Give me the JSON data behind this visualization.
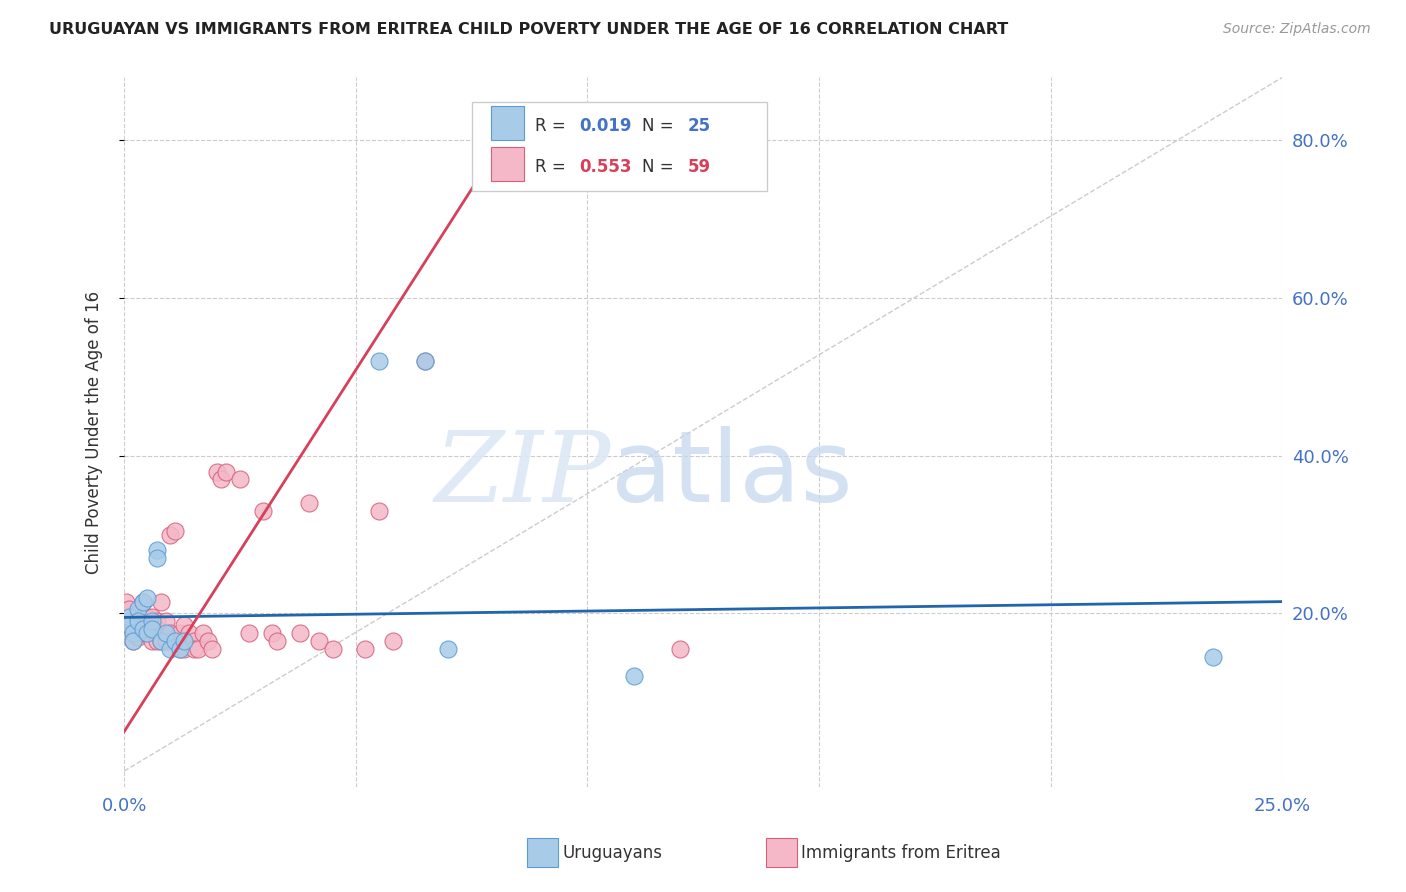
{
  "title": "URUGUAYAN VS IMMIGRANTS FROM ERITREA CHILD POVERTY UNDER THE AGE OF 16 CORRELATION CHART",
  "source": "Source: ZipAtlas.com",
  "ylabel": "Child Poverty Under the Age of 16",
  "xmin": 0.0,
  "xmax": 0.25,
  "ymin": -0.02,
  "ymax": 0.88,
  "yticks": [
    0.2,
    0.4,
    0.6,
    0.8
  ],
  "ytick_labels": [
    "20.0%",
    "40.0%",
    "60.0%",
    "80.0%"
  ],
  "xticks": [
    0.0,
    0.05,
    0.1,
    0.15,
    0.2,
    0.25
  ],
  "xtick_labels": [
    "0.0%",
    "",
    "",
    "",
    "",
    "25.0%"
  ],
  "blue_R": 0.019,
  "blue_N": 25,
  "pink_R": 0.553,
  "pink_N": 59,
  "blue_color": "#a8cce8",
  "pink_color": "#f4b8c8",
  "blue_edge_color": "#5b9bd5",
  "pink_edge_color": "#d45f7a",
  "blue_line_color": "#2166ac",
  "pink_line_color": "#d6405a",
  "legend_label_blue": "Uruguayans",
  "legend_label_pink": "Immigrants from Eritrea",
  "blue_scatter_x": [
    0.001,
    0.001,
    0.002,
    0.002,
    0.003,
    0.003,
    0.004,
    0.004,
    0.005,
    0.005,
    0.006,
    0.006,
    0.007,
    0.007,
    0.008,
    0.009,
    0.01,
    0.011,
    0.012,
    0.013,
    0.055,
    0.065,
    0.07,
    0.11,
    0.235
  ],
  "blue_scatter_y": [
    0.195,
    0.185,
    0.175,
    0.165,
    0.205,
    0.19,
    0.215,
    0.18,
    0.175,
    0.22,
    0.19,
    0.18,
    0.28,
    0.27,
    0.165,
    0.175,
    0.155,
    0.165,
    0.155,
    0.165,
    0.52,
    0.52,
    0.155,
    0.12,
    0.145
  ],
  "pink_scatter_x": [
    0.0005,
    0.001,
    0.001,
    0.002,
    0.002,
    0.002,
    0.003,
    0.003,
    0.003,
    0.003,
    0.004,
    0.004,
    0.004,
    0.005,
    0.005,
    0.005,
    0.006,
    0.006,
    0.006,
    0.007,
    0.007,
    0.007,
    0.008,
    0.008,
    0.008,
    0.009,
    0.009,
    0.01,
    0.01,
    0.011,
    0.011,
    0.012,
    0.012,
    0.013,
    0.013,
    0.014,
    0.015,
    0.015,
    0.016,
    0.017,
    0.018,
    0.019,
    0.02,
    0.021,
    0.022,
    0.025,
    0.027,
    0.03,
    0.032,
    0.033,
    0.038,
    0.04,
    0.042,
    0.045,
    0.052,
    0.055,
    0.058,
    0.065,
    0.12
  ],
  "pink_scatter_y": [
    0.215,
    0.205,
    0.19,
    0.185,
    0.175,
    0.165,
    0.2,
    0.19,
    0.18,
    0.17,
    0.215,
    0.195,
    0.175,
    0.195,
    0.185,
    0.175,
    0.195,
    0.18,
    0.165,
    0.19,
    0.18,
    0.165,
    0.215,
    0.175,
    0.165,
    0.19,
    0.165,
    0.3,
    0.175,
    0.305,
    0.165,
    0.175,
    0.155,
    0.185,
    0.155,
    0.175,
    0.165,
    0.155,
    0.155,
    0.175,
    0.165,
    0.155,
    0.38,
    0.37,
    0.38,
    0.37,
    0.175,
    0.33,
    0.175,
    0.165,
    0.175,
    0.34,
    0.165,
    0.155,
    0.155,
    0.33,
    0.165,
    0.52,
    0.155
  ],
  "pink_trend_x0": 0.0,
  "pink_trend_y0": 0.05,
  "pink_trend_x1": 0.085,
  "pink_trend_y1": 0.83,
  "blue_trend_x0": 0.0,
  "blue_trend_y0": 0.195,
  "blue_trend_x1": 0.25,
  "blue_trend_y1": 0.215
}
